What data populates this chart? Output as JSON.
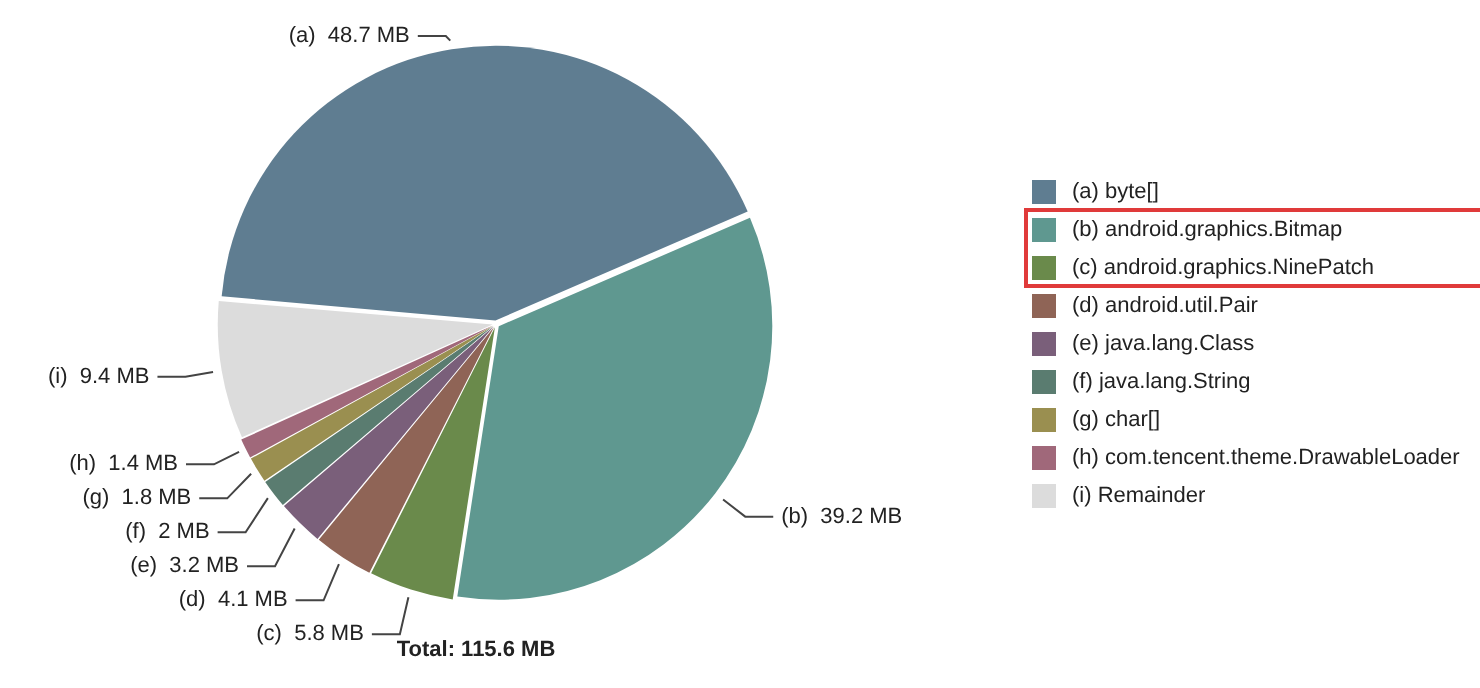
{
  "chart_data": {
    "type": "pie",
    "annotations": [
      "Total: 115.6 MB"
    ],
    "categories": [
      "(a)  byte[]",
      "(b)  android.graphics.Bitmap",
      "(c)  android.graphics.NinePatch",
      "(d)  android.util.Pair",
      "(e)  java.lang.Class",
      "(f)  java.lang.String",
      "(g)  char[]",
      "(h)  com.tencent.theme.DrawableLoader",
      "(i)  Remainder"
    ],
    "values": [
      48.7,
      39.2,
      5.8,
      4.1,
      3.2,
      2,
      1.8,
      1.4,
      9.4
    ],
    "value_labels": [
      "(a)  48.7 MB",
      "(b)  39.2 MB",
      "(c)  5.8 MB",
      "(d)  4.1 MB",
      "(e)  3.2 MB",
      "(f)  2 MB",
      "(g)  1.8 MB",
      "(h)  1.4 MB",
      "(i)  9.4 MB"
    ],
    "colors": [
      "#5f7d91",
      "#5f9890",
      "#6a8a4b",
      "#8f6456",
      "#7a5f7a",
      "#5a7c70",
      "#9a8f50",
      "#a0687a",
      "#dcdcdc"
    ],
    "legend": "right"
  }
}
